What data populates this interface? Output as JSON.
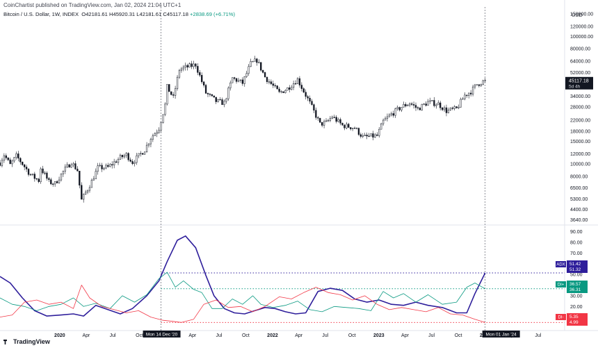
{
  "header": {
    "published_line": "CoinChartist published on TradingView.com, Jan 02, 2024 21:04 UTC+1",
    "symbol": "Bitcoin / U.S. Dollar, 1W, INDEX",
    "open": "O42181.61",
    "high": "H45920.31",
    "low": "L42181.61",
    "close": "C45117.18",
    "change": "+2838.69 (+6.71%)"
  },
  "currency_label": "USD",
  "footer": {
    "logo_text": "TradingView"
  },
  "chart_data": [
    {
      "type": "candlestick",
      "title": "Bitcoin / U.S. Dollar, 1W, INDEX",
      "y_scale": "log",
      "ylim": [
        3400,
        170000
      ],
      "xlim": [
        "2019-06-10",
        "2024-09-30"
      ],
      "y_tick_labels": [
        "150000.00",
        "120000.00",
        "100000.00",
        "80000.00",
        "64000.00",
        "52000.00",
        "34000.00",
        "28000.00",
        "22000.00",
        "18000.00",
        "15000.00",
        "12000.00",
        "10000.00",
        "8000.00",
        "6500.00",
        "5300.00",
        "4400.00",
        "3640.00"
      ],
      "last_price_label": {
        "value": 45117.18,
        "text": "45117.18",
        "countdown": "5d 4h"
      },
      "close_path": [
        [
          "2019-06-10",
          10200
        ],
        [
          "2019-06-24",
          11800
        ],
        [
          "2019-07-15",
          9800
        ],
        [
          "2019-08-05",
          11500
        ],
        [
          "2019-08-26",
          10000
        ],
        [
          "2019-09-23",
          8200
        ],
        [
          "2019-10-21",
          7400
        ],
        [
          "2019-10-28",
          9300
        ],
        [
          "2019-11-25",
          7200
        ],
        [
          "2019-12-16",
          7000
        ],
        [
          "2020-01-13",
          8700
        ],
        [
          "2020-02-10",
          10300
        ],
        [
          "2020-03-02",
          8900
        ],
        [
          "2020-03-16",
          5200
        ],
        [
          "2020-04-20",
          7300
        ],
        [
          "2020-05-11",
          9300
        ],
        [
          "2020-06-15",
          9400
        ],
        [
          "2020-07-27",
          11200
        ],
        [
          "2020-08-17",
          11800
        ],
        [
          "2020-09-07",
          10300
        ],
        [
          "2020-10-19",
          12900
        ],
        [
          "2020-11-09",
          16000
        ],
        [
          "2020-12-07",
          19000
        ],
        [
          "2020-12-28",
          29000
        ],
        [
          "2021-01-04",
          40000
        ],
        [
          "2021-01-25",
          33000
        ],
        [
          "2021-02-15",
          55000
        ],
        [
          "2021-03-08",
          57000
        ],
        [
          "2021-04-12",
          60000
        ],
        [
          "2021-05-17",
          36000
        ],
        [
          "2021-06-21",
          31000
        ],
        [
          "2021-07-19",
          30000
        ],
        [
          "2021-08-16",
          47000
        ],
        [
          "2021-09-20",
          43000
        ],
        [
          "2021-10-18",
          61000
        ],
        [
          "2021-11-08",
          65000
        ],
        [
          "2021-12-06",
          48000
        ],
        [
          "2022-01-24",
          36000
        ],
        [
          "2022-02-21",
          39000
        ],
        [
          "2022-03-28",
          46000
        ],
        [
          "2022-05-09",
          30000
        ],
        [
          "2022-06-13",
          20500
        ],
        [
          "2022-07-04",
          21000
        ],
        [
          "2022-07-25",
          23500
        ],
        [
          "2022-08-29",
          20000
        ],
        [
          "2022-10-10",
          19200
        ],
        [
          "2022-11-07",
          16200
        ],
        [
          "2022-12-26",
          16600
        ],
        [
          "2023-01-16",
          21500
        ],
        [
          "2023-02-13",
          24500
        ],
        [
          "2023-03-20",
          28000
        ],
        [
          "2023-04-17",
          30000
        ],
        [
          "2023-05-15",
          27000
        ],
        [
          "2023-06-19",
          30500
        ],
        [
          "2023-07-24",
          29500
        ],
        [
          "2023-08-21",
          26000
        ],
        [
          "2023-09-25",
          27000
        ],
        [
          "2023-10-23",
          34500
        ],
        [
          "2023-11-13",
          37000
        ],
        [
          "2023-12-04",
          42000
        ],
        [
          "2024-01-01",
          45117
        ]
      ]
    },
    {
      "type": "line",
      "title": "",
      "ylim": [
        0,
        95
      ],
      "xlim": [
        "2019-06-10",
        "2024-09-30"
      ],
      "y_tick_labels": [
        "90.00",
        "80.00",
        "70.00",
        "60.00",
        "50.00",
        "40.00",
        "30.00",
        "20.00",
        "10.00"
      ],
      "x_tick_labels": [
        "2020",
        "Apr",
        "Jul",
        "Oct",
        "2021",
        "Apr",
        "Jul",
        "Oct",
        "2022",
        "Apr",
        "Jul",
        "Oct",
        "2023",
        "Apr",
        "Jul",
        "Oct",
        "2024",
        "Apr",
        "Jul"
      ],
      "series": [
        {
          "name": "ADX",
          "color": "#2e1e9b",
          "points": [
            [
              "2019-06-10",
              48
            ],
            [
              "2019-07-15",
              42
            ],
            [
              "2019-08-26",
              28
            ],
            [
              "2019-10-07",
              16
            ],
            [
              "2019-11-18",
              11
            ],
            [
              "2020-01-06",
              12
            ],
            [
              "2020-02-17",
              13
            ],
            [
              "2020-03-23",
              11
            ],
            [
              "2020-05-04",
              21
            ],
            [
              "2020-06-15",
              17
            ],
            [
              "2020-07-27",
              13
            ],
            [
              "2020-09-07",
              18
            ],
            [
              "2020-10-26",
              30
            ],
            [
              "2020-12-07",
              44
            ],
            [
              "2021-01-04",
              62
            ],
            [
              "2021-02-08",
              82
            ],
            [
              "2021-03-08",
              86
            ],
            [
              "2021-04-12",
              75
            ],
            [
              "2021-05-17",
              49
            ],
            [
              "2021-06-14",
              30
            ],
            [
              "2021-07-19",
              18
            ],
            [
              "2021-08-23",
              14
            ],
            [
              "2021-09-27",
              13
            ],
            [
              "2021-11-01",
              16
            ],
            [
              "2021-12-06",
              19
            ],
            [
              "2022-01-10",
              18
            ],
            [
              "2022-02-14",
              15
            ],
            [
              "2022-03-21",
              13
            ],
            [
              "2022-04-25",
              14
            ],
            [
              "2022-06-06",
              34
            ],
            [
              "2022-07-18",
              37
            ],
            [
              "2022-08-29",
              35
            ],
            [
              "2022-10-10",
              27
            ],
            [
              "2022-11-21",
              24
            ],
            [
              "2023-01-02",
              26
            ],
            [
              "2023-02-13",
              22
            ],
            [
              "2023-03-27",
              21
            ],
            [
              "2023-05-08",
              24
            ],
            [
              "2023-06-19",
              21
            ],
            [
              "2023-08-07",
              19
            ],
            [
              "2023-09-25",
              14
            ],
            [
              "2023-10-30",
              14
            ],
            [
              "2023-11-27",
              32
            ],
            [
              "2024-01-01",
              51.42
            ]
          ]
        },
        {
          "name": "DI+",
          "color": "#089981",
          "points": [
            [
              "2019-06-10",
              28
            ],
            [
              "2019-07-22",
              22
            ],
            [
              "2019-09-02",
              20
            ],
            [
              "2019-10-14",
              16
            ],
            [
              "2019-11-25",
              20
            ],
            [
              "2020-01-06",
              22
            ],
            [
              "2020-02-17",
              28
            ],
            [
              "2020-03-23",
              20
            ],
            [
              "2020-05-04",
              23
            ],
            [
              "2020-06-22",
              18
            ],
            [
              "2020-08-03",
              30
            ],
            [
              "2020-09-14",
              24
            ],
            [
              "2020-10-26",
              31
            ],
            [
              "2020-12-07",
              46
            ],
            [
              "2021-01-04",
              52
            ],
            [
              "2021-02-01",
              38
            ],
            [
              "2021-03-01",
              44
            ],
            [
              "2021-04-05",
              36
            ],
            [
              "2021-05-03",
              33
            ],
            [
              "2021-06-07",
              18
            ],
            [
              "2021-07-12",
              18
            ],
            [
              "2021-08-16",
              27
            ],
            [
              "2021-09-20",
              22
            ],
            [
              "2021-10-25",
              30
            ],
            [
              "2021-11-22",
              22
            ],
            [
              "2022-01-03",
              19
            ],
            [
              "2022-02-14",
              21
            ],
            [
              "2022-03-28",
              25
            ],
            [
              "2022-05-09",
              17
            ],
            [
              "2022-06-20",
              15
            ],
            [
              "2022-08-01",
              20
            ],
            [
              "2022-09-12",
              19
            ],
            [
              "2022-10-24",
              18
            ],
            [
              "2022-12-05",
              16
            ],
            [
              "2023-01-16",
              34
            ],
            [
              "2023-02-20",
              28
            ],
            [
              "2023-03-27",
              32
            ],
            [
              "2023-05-08",
              24
            ],
            [
              "2023-06-19",
              31
            ],
            [
              "2023-08-07",
              22
            ],
            [
              "2023-09-25",
              24
            ],
            [
              "2023-10-30",
              38
            ],
            [
              "2023-11-27",
              42
            ],
            [
              "2024-01-01",
              36.57
            ]
          ]
        },
        {
          "name": "DI-",
          "color": "#f23645",
          "points": [
            [
              "2019-06-10",
              10
            ],
            [
              "2019-07-22",
              12
            ],
            [
              "2019-09-02",
              24
            ],
            [
              "2019-10-14",
              26
            ],
            [
              "2019-11-25",
              22
            ],
            [
              "2020-01-06",
              24
            ],
            [
              "2020-02-17",
              18
            ],
            [
              "2020-03-16",
              40
            ],
            [
              "2020-04-13",
              28
            ],
            [
              "2020-05-25",
              20
            ],
            [
              "2020-07-06",
              17
            ],
            [
              "2020-08-17",
              14
            ],
            [
              "2020-09-28",
              16
            ],
            [
              "2020-11-09",
              10
            ],
            [
              "2020-12-21",
              7
            ],
            [
              "2021-01-25",
              6
            ],
            [
              "2021-02-22",
              5
            ],
            [
              "2021-04-05",
              8
            ],
            [
              "2021-05-10",
              22
            ],
            [
              "2021-06-21",
              26
            ],
            [
              "2021-08-02",
              19
            ],
            [
              "2021-09-13",
              20
            ],
            [
              "2021-10-25",
              15
            ],
            [
              "2021-12-06",
              20
            ],
            [
              "2022-01-24",
              29
            ],
            [
              "2022-03-07",
              27
            ],
            [
              "2022-04-18",
              33
            ],
            [
              "2022-05-30",
              38
            ],
            [
              "2022-07-11",
              33
            ],
            [
              "2022-08-22",
              31
            ],
            [
              "2022-10-03",
              26
            ],
            [
              "2022-11-14",
              30
            ],
            [
              "2022-12-26",
              22
            ],
            [
              "2023-02-06",
              17
            ],
            [
              "2023-03-20",
              19
            ],
            [
              "2023-05-01",
              17
            ],
            [
              "2023-06-12",
              15
            ],
            [
              "2023-07-24",
              19
            ],
            [
              "2023-09-04",
              13
            ],
            [
              "2023-10-16",
              12
            ],
            [
              "2023-11-27",
              8
            ],
            [
              "2024-01-01",
              4.99
            ]
          ]
        }
      ],
      "legend_labels": [
        {
          "name": "ADX",
          "values": [
            "51.42",
            "51.32"
          ],
          "color": "#2e1e9b"
        },
        {
          "name": "DI+",
          "values": [
            "36.57",
            "36.31"
          ],
          "color": "#089981"
        },
        {
          "name": "DI-",
          "values": [
            "5.35",
            "4.99"
          ],
          "color": "#f23645"
        }
      ]
    }
  ],
  "crosshair_labels": [
    "Mon 14 Dec '20",
    "Mon 01 Jan '24"
  ],
  "markers": {
    "dates": [
      "2020-12-14",
      "2024-01-01"
    ]
  },
  "levels": [
    {
      "indicator": "ADX",
      "value": 51.42
    },
    {
      "indicator": "DI+",
      "value": 36.57
    },
    {
      "indicator": "DI-",
      "value": 4.99
    }
  ]
}
